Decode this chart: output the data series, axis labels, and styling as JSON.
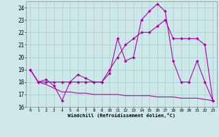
{
  "xlabel": "Windchill (Refroidissement éolien,°C)",
  "bg_color": "#cce8e8",
  "grid_color": "#aacaca",
  "line_color": "#aa00aa",
  "xlim": [
    -0.5,
    23.5
  ],
  "ylim": [
    16,
    24.5
  ],
  "yticks": [
    16,
    17,
    18,
    19,
    20,
    21,
    22,
    23,
    24
  ],
  "xticks": [
    0,
    1,
    2,
    3,
    4,
    5,
    6,
    7,
    8,
    9,
    10,
    11,
    12,
    13,
    14,
    15,
    16,
    17,
    18,
    19,
    20,
    21,
    22,
    23
  ],
  "line1_x": [
    0,
    1,
    2,
    3,
    4,
    5,
    6,
    7,
    8,
    9,
    10,
    11,
    12,
    13,
    14,
    15,
    16,
    17,
    18,
    19,
    20,
    21,
    22,
    23
  ],
  "line1_y": [
    19,
    18,
    18.2,
    17.7,
    16.5,
    18,
    18.6,
    18.3,
    18,
    18,
    18.7,
    21.5,
    19.7,
    20.0,
    23.0,
    23.7,
    24.3,
    23.7,
    19.7,
    18,
    18,
    19.7,
    18,
    16.5
  ],
  "line2_x": [
    0,
    1,
    2,
    3,
    4,
    5,
    6,
    7,
    8,
    9,
    10,
    11,
    12,
    13,
    14,
    15,
    16,
    17,
    18,
    19,
    20,
    21,
    22,
    23
  ],
  "line2_y": [
    19,
    18,
    18,
    18,
    18,
    18,
    18,
    18,
    18,
    18,
    19.0,
    20.0,
    21.0,
    21.5,
    22.0,
    22.0,
    22.5,
    23.0,
    21.5,
    21.5,
    21.5,
    21.5,
    21.0,
    16.5
  ],
  "line3_x": [
    0,
    1,
    2,
    3,
    4,
    5,
    6,
    7,
    8,
    9,
    10,
    11,
    12,
    13,
    14,
    15,
    16,
    17,
    18,
    19,
    20,
    21,
    22,
    23
  ],
  "line3_y": [
    19,
    18,
    17.8,
    17.5,
    17.2,
    17.2,
    17.1,
    17.1,
    17.0,
    17.0,
    17.0,
    17.0,
    16.9,
    16.9,
    16.9,
    16.9,
    16.8,
    16.8,
    16.8,
    16.7,
    16.7,
    16.7,
    16.6,
    16.5
  ]
}
